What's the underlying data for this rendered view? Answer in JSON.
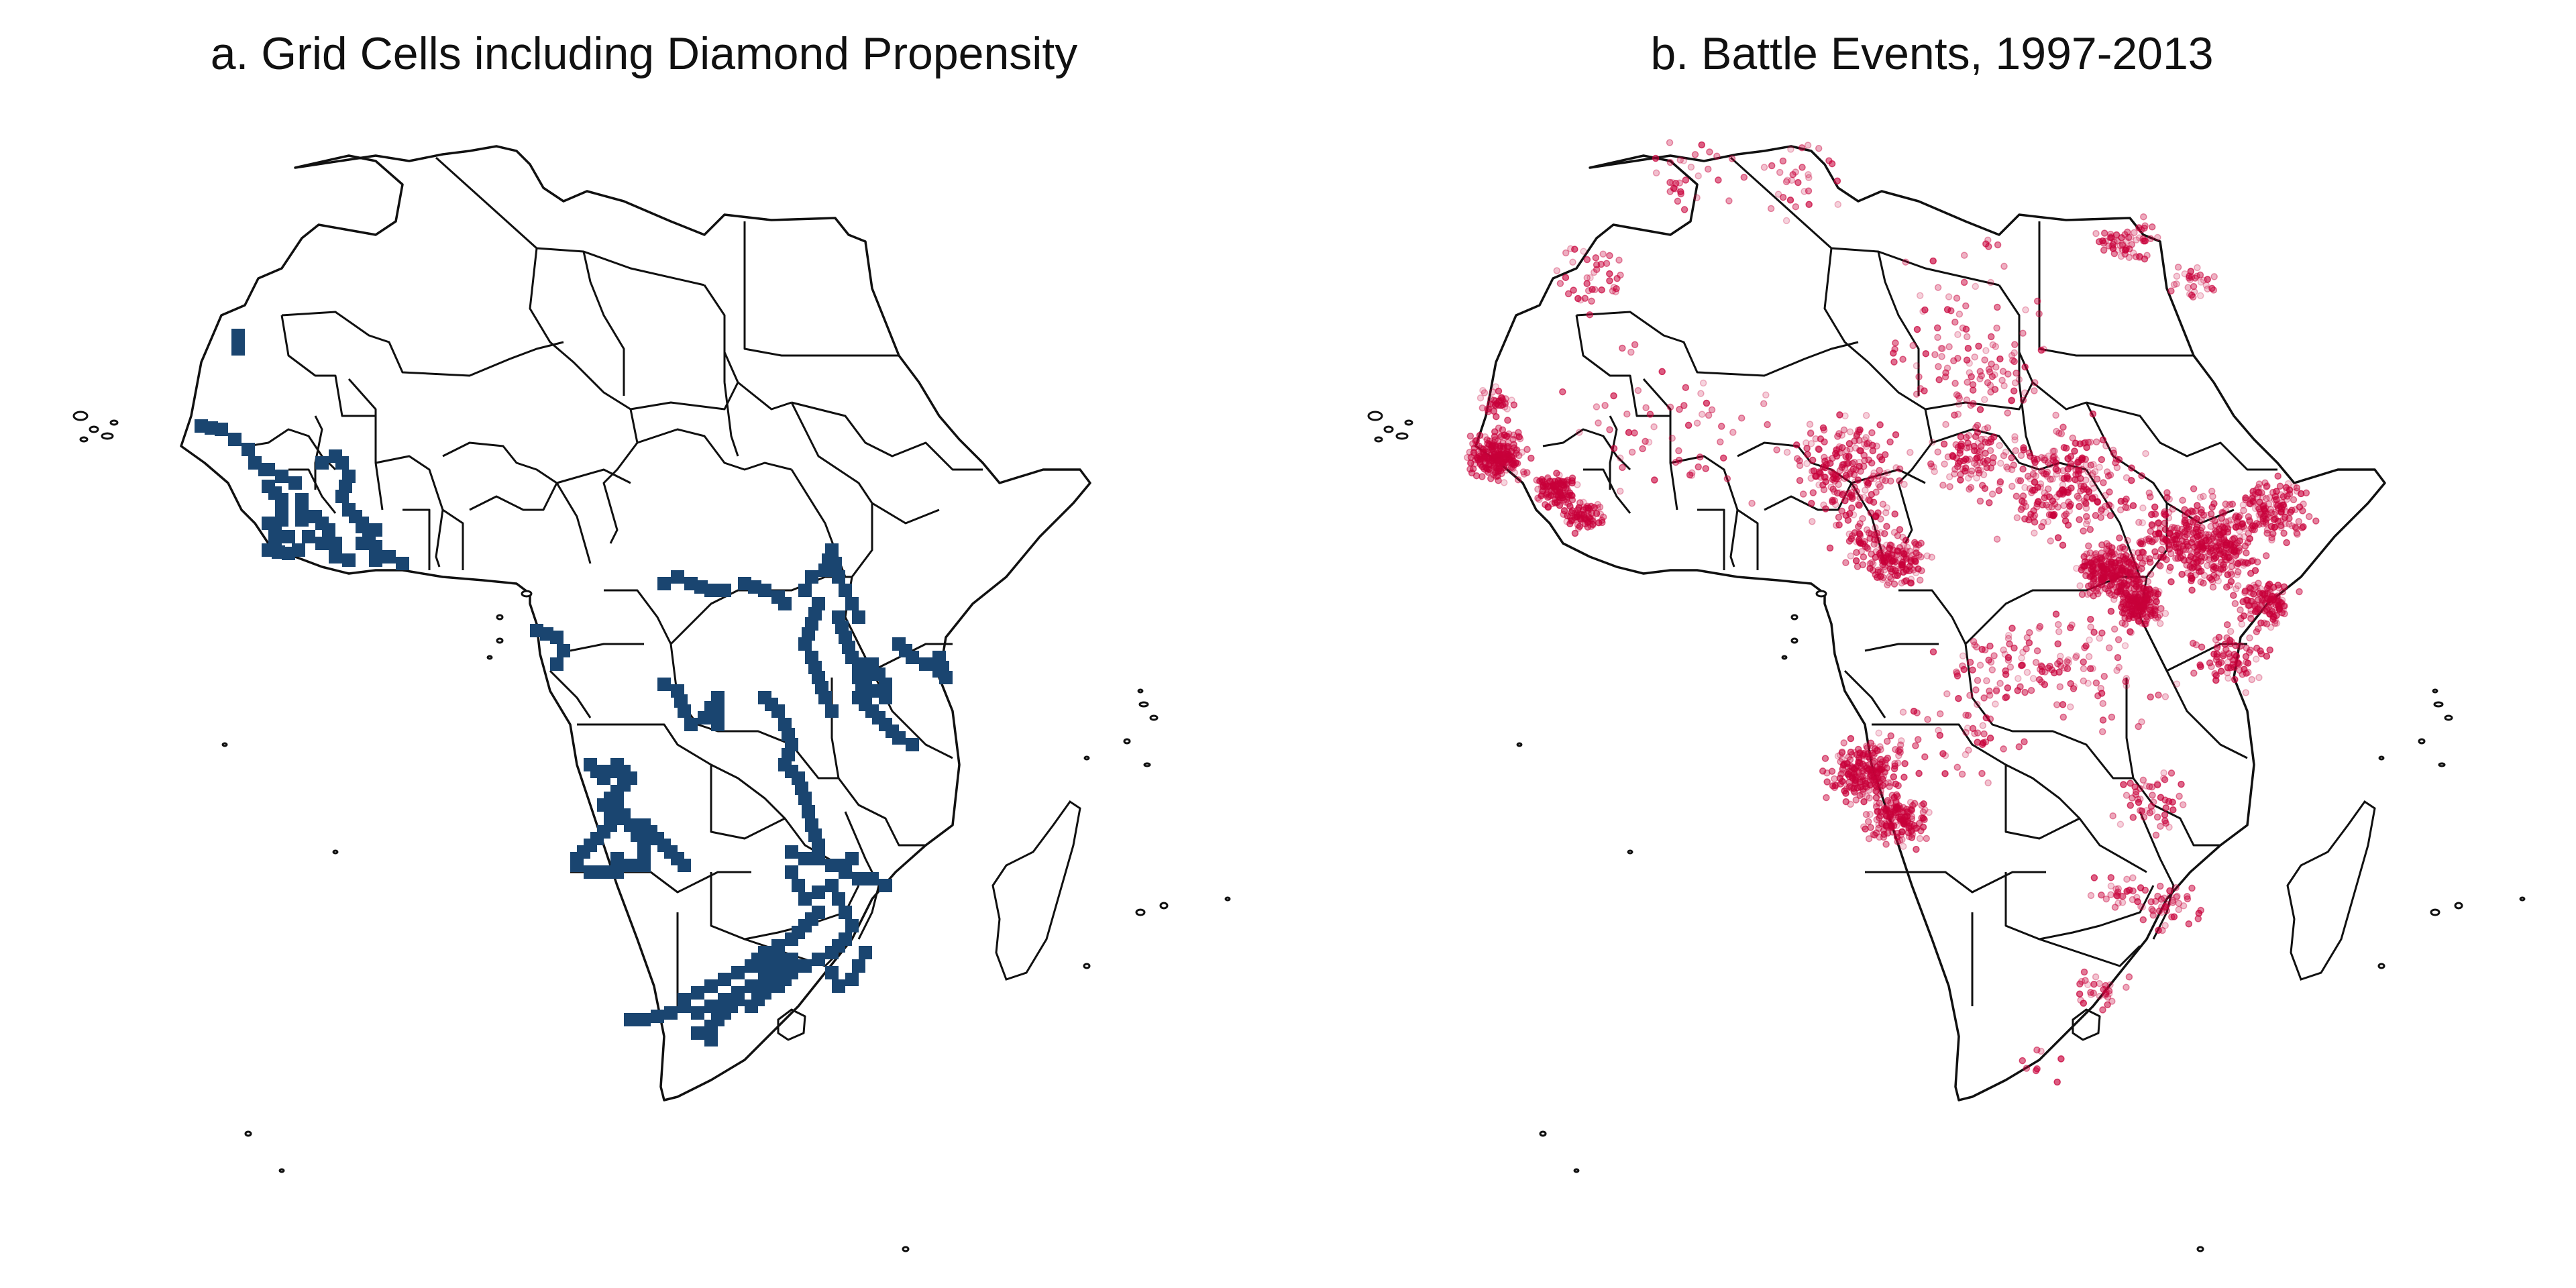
{
  "panels": [
    {
      "id": "a",
      "title": "a. Grid Cells including Diamond Propensity",
      "layer": "grid-cells",
      "cell_color": "#1a4570"
    },
    {
      "id": "b",
      "title": "b. Battle Events, 1997-2013",
      "layer": "battle-events",
      "point_color": "#c8003a"
    }
  ],
  "basemap": {
    "region": "Africa",
    "outline_color": "#111111",
    "fill_color": "#ffffff",
    "boundaries": "country borders"
  }
}
